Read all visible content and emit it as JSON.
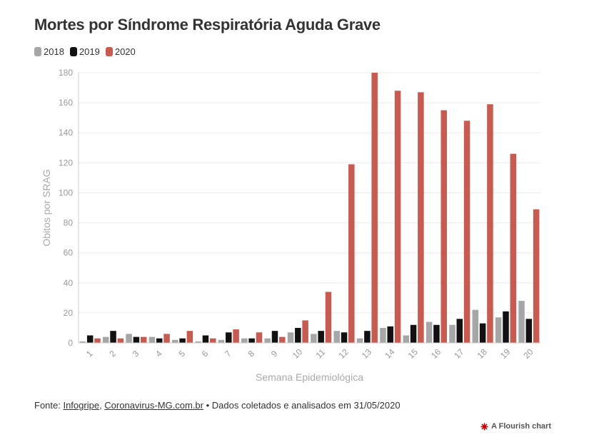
{
  "chart_data": {
    "type": "bar",
    "title": "Mortes por Síndrome Respiratória Aguda Grave",
    "xlabel": "Semana Epidemiológica",
    "ylabel": "Obitos por SRAG",
    "ylim": [
      0,
      180
    ],
    "yticks": [
      0,
      20,
      40,
      60,
      80,
      100,
      120,
      140,
      160,
      180
    ],
    "grid": true,
    "legend_position": "top-left",
    "categories": [
      "1",
      "2",
      "3",
      "4",
      "5",
      "6",
      "7",
      "8",
      "9",
      "10",
      "11",
      "12",
      "13",
      "14",
      "15",
      "16",
      "17",
      "18",
      "19",
      "20"
    ],
    "series": [
      {
        "name": "2018",
        "color": "#a6a6a6",
        "values": [
          1,
          4,
          6,
          4,
          2,
          1,
          2,
          3,
          3,
          7,
          6,
          8,
          3,
          10,
          5,
          14,
          12,
          22,
          17,
          28
        ]
      },
      {
        "name": "2019",
        "color": "#111111",
        "values": [
          5,
          8,
          4,
          3,
          3,
          5,
          7,
          3,
          8,
          10,
          8,
          7,
          8,
          11,
          12,
          12,
          16,
          13,
          21,
          16
        ]
      },
      {
        "name": "2020",
        "color": "#c95a50",
        "values": [
          3,
          3,
          4,
          6,
          8,
          3,
          9,
          7,
          4,
          15,
          34,
          119,
          180,
          168,
          167,
          155,
          148,
          159,
          126,
          89
        ]
      }
    ]
  },
  "footer": {
    "prefix": "Fonte: ",
    "link1": "Infogripe",
    "separator": ", ",
    "link2": "Coronavirus-MG.com.br",
    "suffix": " • Dados coletados e analisados em 31/05/2020"
  },
  "credit": {
    "text": "A Flourish chart",
    "icon": "flourish-logo-icon",
    "icon_color": "#c00000"
  }
}
